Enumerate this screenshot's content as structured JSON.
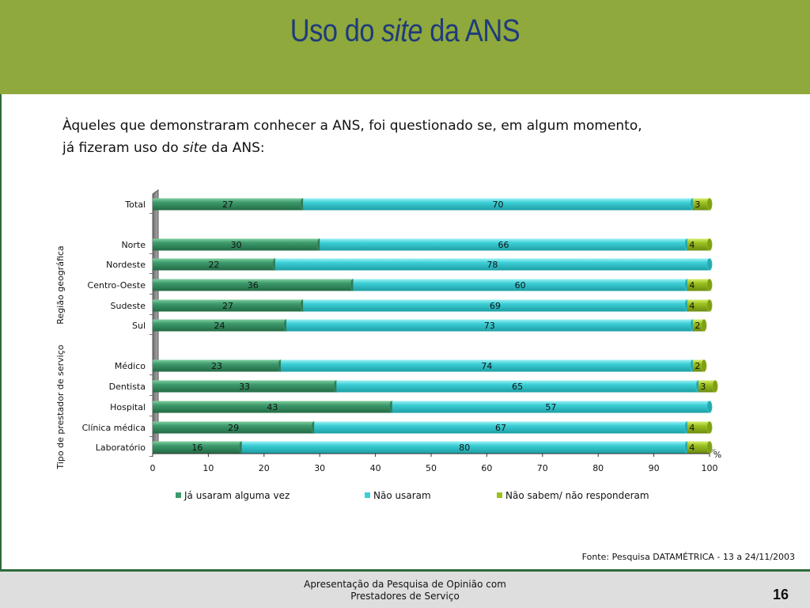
{
  "header": {
    "title_pre": "Uso do ",
    "title_italic": "site",
    "title_post": " da ANS"
  },
  "intro": {
    "line1": "Àqueles que demonstraram conhecer a ANS, foi questionado se, em algum momento,",
    "line2_pre": "já fizeram uso do ",
    "line2_italic": "site",
    "line2_post": " da ANS:"
  },
  "chart_data": {
    "type": "bar",
    "orientation": "horizontal",
    "stacked": true,
    "categories": [
      "Total",
      "Norte",
      "Nordeste",
      "Centro-Oeste",
      "Sudeste",
      "Sul",
      "Médico",
      "Dentista",
      "Hospital",
      "Clínica médica",
      "Laboratório"
    ],
    "groups": [
      {
        "label": "Região geográfica",
        "categories": [
          "Norte",
          "Nordeste",
          "Centro-Oeste",
          "Sudeste",
          "Sul"
        ]
      },
      {
        "label": "Tipo de prestador de serviço",
        "categories": [
          "Médico",
          "Dentista",
          "Hospital",
          "Clínica médica",
          "Laboratório"
        ]
      }
    ],
    "series": [
      {
        "name": "Já usaram alguma vez",
        "color": "#3d9a6c",
        "values": [
          27,
          30,
          22,
          36,
          27,
          24,
          23,
          33,
          43,
          29,
          16
        ]
      },
      {
        "name": "Não usaram",
        "color": "#3ccfd6",
        "values": [
          70,
          66,
          78,
          60,
          69,
          73,
          74,
          65,
          57,
          67,
          80
        ]
      },
      {
        "name": "Não sabem/ não responderam",
        "color": "#9cc11f",
        "values": [
          3,
          4,
          null,
          4,
          4,
          2,
          2,
          3,
          null,
          4,
          4
        ]
      }
    ],
    "xlim": [
      0,
      100
    ],
    "xticks": [
      0,
      10,
      20,
      30,
      40,
      50,
      60,
      70,
      80,
      90,
      100
    ],
    "unit_label": "%",
    "legend_position": "bottom"
  },
  "source": "Fonte: Pesquisa DATAMÉTRICA - 13 a 24/11/2003",
  "footer": {
    "line1": "Apresentação da Pesquisa de Opinião com",
    "line2": "Prestadores de Serviço",
    "page_number": "16"
  }
}
